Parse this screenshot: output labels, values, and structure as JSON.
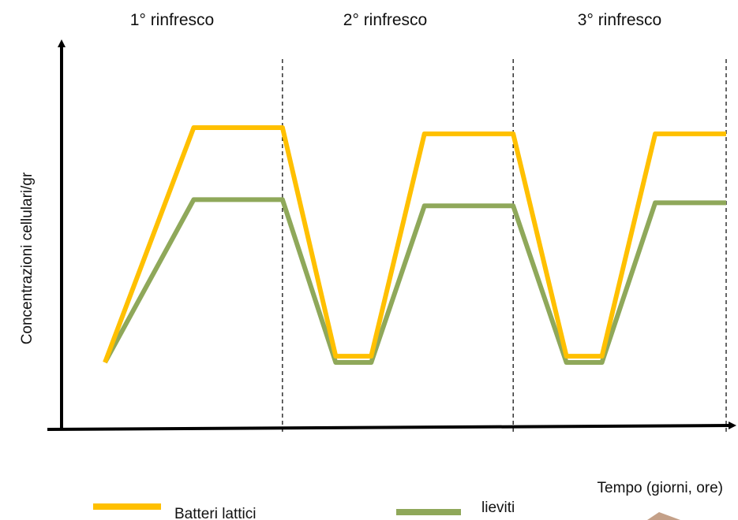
{
  "chart_data": {
    "type": "line",
    "title": "",
    "xlabel": "Tempo (giorni, ore)",
    "ylabel": "Concentrazioni cellulari/gr",
    "phases": [
      "1° rinfresco",
      "2° rinfresco",
      "3° rinfresco"
    ],
    "ticks": {
      "x": [],
      "y": []
    },
    "grid": false,
    "legend": {
      "position": "bottom"
    },
    "series": [
      {
        "name": "Batteri lattici",
        "color": "#FFC000",
        "points": [
          [
            0.0,
            0.0
          ],
          [
            0.5,
            0.75
          ],
          [
            1.0,
            0.75
          ],
          [
            1.3,
            0.02
          ],
          [
            1.5,
            0.02
          ],
          [
            1.8,
            0.73
          ],
          [
            2.3,
            0.73
          ],
          [
            2.6,
            0.02
          ],
          [
            2.8,
            0.02
          ],
          [
            3.1,
            0.73
          ],
          [
            3.5,
            0.73
          ]
        ]
      },
      {
        "name": "lieviti",
        "color": "#8FA85A",
        "points": [
          [
            0.0,
            0.0
          ],
          [
            0.5,
            0.52
          ],
          [
            1.0,
            0.52
          ],
          [
            1.3,
            0.0
          ],
          [
            1.5,
            0.0
          ],
          [
            1.8,
            0.5
          ],
          [
            2.3,
            0.5
          ],
          [
            2.6,
            0.0
          ],
          [
            2.8,
            0.0
          ],
          [
            3.1,
            0.51
          ],
          [
            3.5,
            0.51
          ]
        ]
      }
    ],
    "boundaries": [
      1.0,
      2.3,
      3.5
    ]
  }
}
